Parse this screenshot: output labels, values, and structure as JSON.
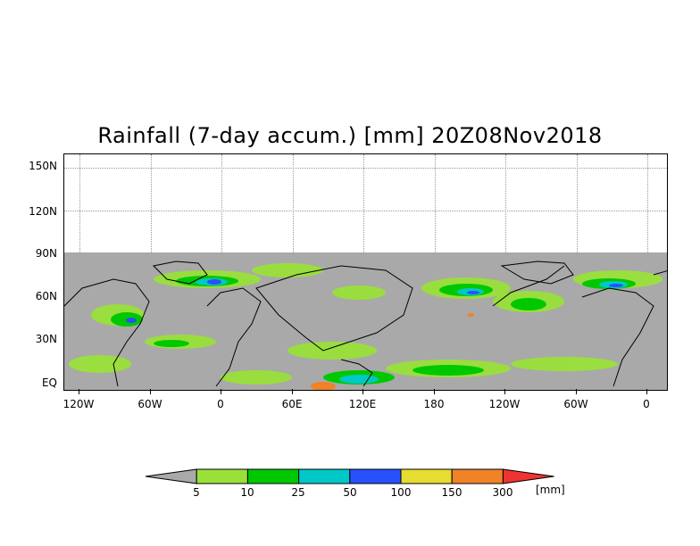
{
  "title": "Rainfall (7-day accum.) [mm] 20Z08Nov2018",
  "y_ticks": [
    "150N",
    "120N",
    "90N",
    "60N",
    "30N",
    "EQ"
  ],
  "x_ticks": [
    "120W",
    "60W",
    "0",
    "60E",
    "120E",
    "180",
    "120W",
    "60W",
    "0"
  ],
  "colorbar": {
    "labels": [
      "5",
      "10",
      "25",
      "50",
      "100",
      "150",
      "300"
    ],
    "unit": "[mm]",
    "colors": [
      "#a9a9a9",
      "#9ae03a",
      "#00c800",
      "#00c8c8",
      "#2850ff",
      "#e6dc32",
      "#f08228",
      "#f03232"
    ]
  },
  "map_colors": {
    "background_no_data": "#ffffff",
    "dry": "#a9a9a9",
    "coastlines": "#000000"
  }
}
